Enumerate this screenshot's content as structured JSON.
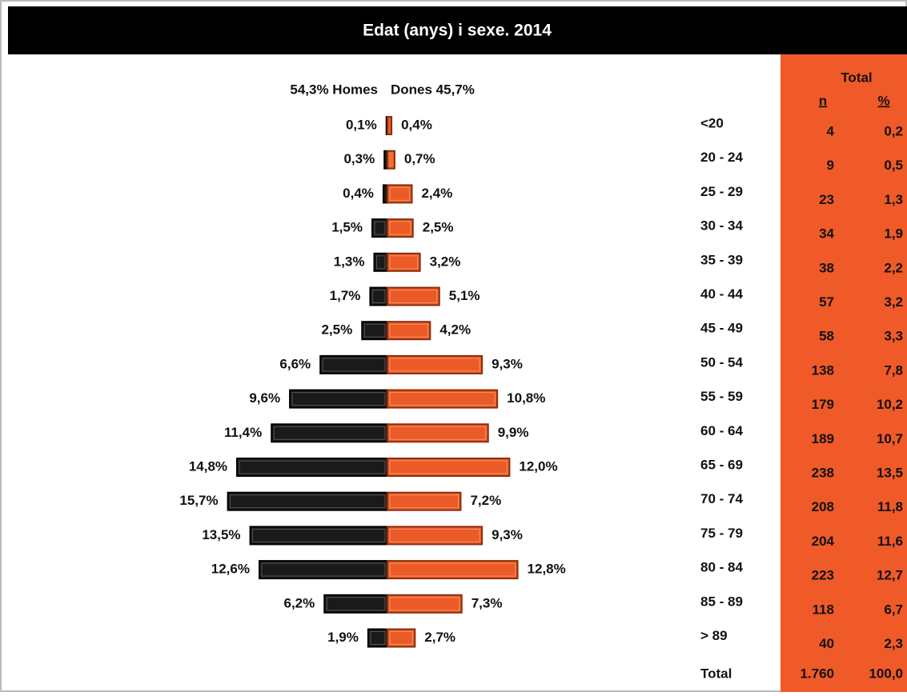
{
  "chart_data": {
    "type": "pyramid",
    "title": "Edat (anys) i sexe. 2014",
    "categories": [
      "<20",
      "20 - 24",
      "25 - 29",
      "30 - 34",
      "35 - 39",
      "40 - 44",
      "45 - 49",
      "50 - 54",
      "55 - 59",
      "60 - 64",
      "65 - 69",
      "70 - 74",
      "75 - 79",
      "80 - 84",
      "85 - 89",
      "> 89"
    ],
    "series": [
      {
        "name": "54,3% Homes",
        "color": "#1a1a1a",
        "values": [
          0.1,
          0.3,
          0.4,
          1.5,
          1.3,
          1.7,
          2.5,
          6.6,
          9.6,
          11.4,
          14.8,
          15.7,
          13.5,
          12.6,
          6.2,
          1.9
        ],
        "value_labels": [
          "0,1%",
          "0,3%",
          "0,4%",
          "1,5%",
          "1,3%",
          "1,7%",
          "2,5%",
          "6,6%",
          "9,6%",
          "11,4%",
          "14,8%",
          "15,7%",
          "13,5%",
          "12,6%",
          "6,2%",
          "1,9%"
        ]
      },
      {
        "name": "Dones 45,7%",
        "color": "#ea5b27",
        "values": [
          0.4,
          0.7,
          2.4,
          2.5,
          3.2,
          5.1,
          4.2,
          9.3,
          10.8,
          9.9,
          12.0,
          7.2,
          9.3,
          12.8,
          7.3,
          2.7
        ],
        "value_labels": [
          "0,4%",
          "0,7%",
          "2,4%",
          "2,5%",
          "3,2%",
          "5,1%",
          "4,2%",
          "9,3%",
          "10,8%",
          "9,9%",
          "12,0%",
          "7,2%",
          "9,3%",
          "12,8%",
          "7,3%",
          "2,7%"
        ]
      }
    ]
  },
  "table": {
    "header": "Total",
    "columns": [
      "n",
      "%"
    ],
    "rows": [
      [
        "4",
        "0,2"
      ],
      [
        "9",
        "0,5"
      ],
      [
        "23",
        "1,3"
      ],
      [
        "34",
        "1,9"
      ],
      [
        "38",
        "2,2"
      ],
      [
        "57",
        "3,2"
      ],
      [
        "58",
        "3,3"
      ],
      [
        "138",
        "7,8"
      ],
      [
        "179",
        "10,2"
      ],
      [
        "189",
        "10,7"
      ],
      [
        "238",
        "13,5"
      ],
      [
        "208",
        "11,8"
      ],
      [
        "204",
        "11,6"
      ],
      [
        "223",
        "12,7"
      ],
      [
        "118",
        "6,7"
      ],
      [
        "40",
        "2,3"
      ]
    ],
    "total": {
      "label": "Total",
      "n": "1.760",
      "pct": "100,0"
    }
  }
}
